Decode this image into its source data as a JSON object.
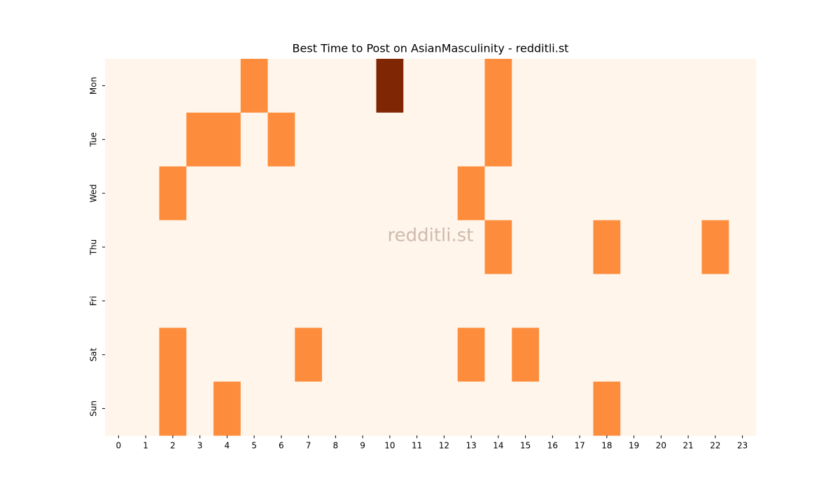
{
  "chart_data": {
    "type": "heatmap",
    "title": "Best Time to Post on AsianMasculinity - redditli.st",
    "watermark": "redditli.st",
    "x": [
      0,
      1,
      2,
      3,
      4,
      5,
      6,
      7,
      8,
      9,
      10,
      11,
      12,
      13,
      14,
      15,
      16,
      17,
      18,
      19,
      20,
      21,
      22,
      23
    ],
    "y": [
      "Mon",
      "Tue",
      "Wed",
      "Thu",
      "Fri",
      "Sat",
      "Sun"
    ],
    "values": [
      [
        0,
        0,
        0,
        0,
        0,
        1,
        0,
        0,
        0,
        0,
        2,
        0,
        0,
        0,
        1,
        0,
        0,
        0,
        0,
        0,
        0,
        0,
        0,
        0
      ],
      [
        0,
        0,
        0,
        1,
        1,
        0,
        1,
        0,
        0,
        0,
        0,
        0,
        0,
        0,
        1,
        0,
        0,
        0,
        0,
        0,
        0,
        0,
        0,
        0
      ],
      [
        0,
        0,
        1,
        0,
        0,
        0,
        0,
        0,
        0,
        0,
        0,
        0,
        0,
        1,
        0,
        0,
        0,
        0,
        0,
        0,
        0,
        0,
        0,
        0
      ],
      [
        0,
        0,
        0,
        0,
        0,
        0,
        0,
        0,
        0,
        0,
        0,
        0,
        0,
        0,
        1,
        0,
        0,
        0,
        1,
        0,
        0,
        0,
        1,
        0
      ],
      [
        0,
        0,
        0,
        0,
        0,
        0,
        0,
        0,
        0,
        0,
        0,
        0,
        0,
        0,
        0,
        0,
        0,
        0,
        0,
        0,
        0,
        0,
        0,
        0
      ],
      [
        0,
        0,
        1,
        0,
        0,
        0,
        0,
        1,
        0,
        0,
        0,
        0,
        0,
        1,
        0,
        1,
        0,
        0,
        0,
        0,
        0,
        0,
        0,
        0
      ],
      [
        0,
        0,
        1,
        0,
        1,
        0,
        0,
        0,
        0,
        0,
        0,
        0,
        0,
        0,
        0,
        0,
        0,
        0,
        1,
        0,
        0,
        0,
        0,
        0
      ]
    ],
    "zlim": [
      0,
      2
    ],
    "colors": [
      "#fff5eb",
      "#fd8d3c",
      "#7f2704"
    ]
  }
}
